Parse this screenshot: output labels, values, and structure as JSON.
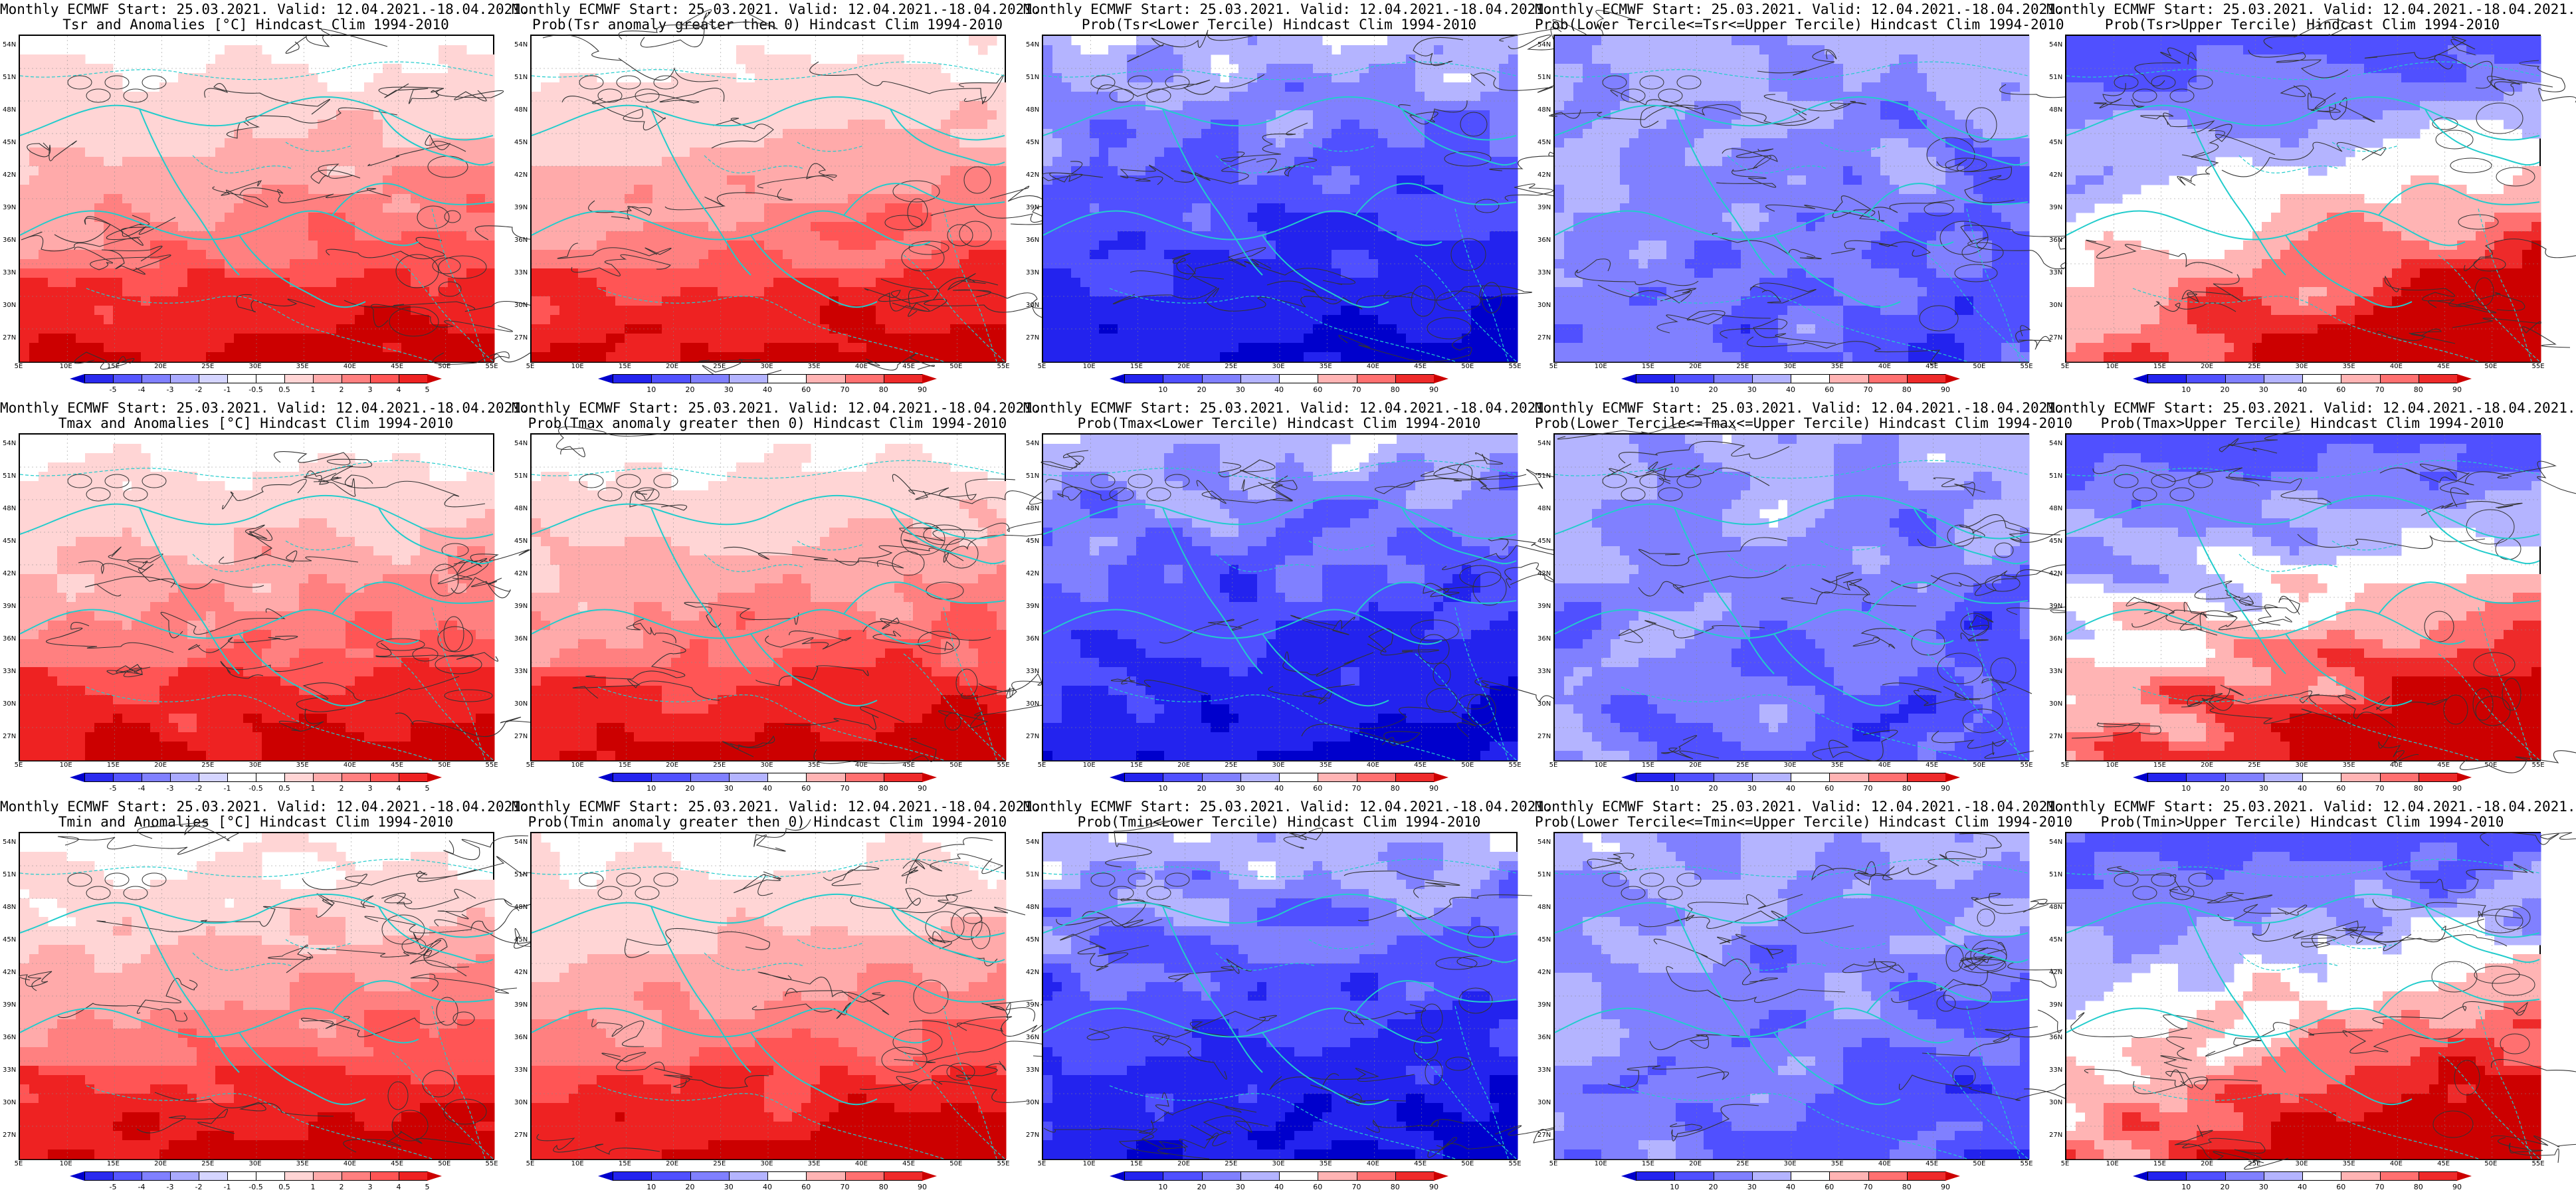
{
  "colors": {
    "anomaly_scale": [
      "#0000cc",
      "#2a2aee",
      "#5555ff",
      "#8080ff",
      "#aaaaff",
      "#d5d5ff",
      "#ffffff",
      "#ffffff",
      "#ffd5d5",
      "#ffaaaa",
      "#ff8080",
      "#ff5555",
      "#ee2222",
      "#cc0000"
    ],
    "prob_scale": [
      "#0000cc",
      "#2323ee",
      "#5050ff",
      "#8080ff",
      "#b4b4ff",
      "#ffffff",
      "#ffb4b4",
      "#ff7070",
      "#ee2a2a",
      "#cc0000"
    ],
    "coast": "#22cccc",
    "contour": "#333333"
  },
  "rows": [
    {
      "variable": "Tsr",
      "panels": [
        {
          "type": "anomaly",
          "title1": "Monthly ECMWF Start: 25.03.2021. Valid: 12.04.2021.-18.04.2021.",
          "title2": "Tsr and Anomalies [°C] Hindcast Clim 1994-2010",
          "tone": "warm"
        },
        {
          "type": "prob",
          "title1": "Monthly ECMWF Start: 25.03.2021. Valid: 12.04.2021.-18.04.2021.",
          "title2": "Prob(Tsr anomaly greater then 0) Hindcast Clim 1994-2010",
          "tone": "warm"
        },
        {
          "type": "prob",
          "title1": "Monthly ECMWF Start: 25.03.2021. Valid: 12.04.2021.-18.04.2021.",
          "title2": "Prob(Tsr<Lower Tercile) Hindcast Clim 1994-2010",
          "tone": "coldstrong"
        },
        {
          "type": "prob",
          "title1": "Monthly ECMWF Start: 25.03.2021. Valid: 12.04.2021.-18.04.2021.",
          "title2": "Prob(Lower Tercile<=Tsr<=Upper Tercile) Hindcast Clim 1994-2010",
          "tone": "coldmid"
        },
        {
          "type": "prob",
          "title1": "Monthly ECMWF Start: 25.03.2021. Valid: 12.04.2021.-18.04.2021.",
          "title2": "Prob(Tsr>Upper Tercile) Hindcast Clim 1994-2010",
          "tone": "mixed"
        }
      ]
    },
    {
      "variable": "Tmax",
      "panels": [
        {
          "type": "anomaly",
          "title1": "Monthly ECMWF Start: 25.03.2021. Valid: 12.04.2021.-18.04.2021.",
          "title2": "Tmax and Anomalies [°C] Hindcast Clim 1994-2010",
          "tone": "warm"
        },
        {
          "type": "prob",
          "title1": "Monthly ECMWF Start: 25.03.2021. Valid: 12.04.2021.-18.04.2021.",
          "title2": "Prob(Tmax anomaly greater then 0) Hindcast Clim 1994-2010",
          "tone": "warm"
        },
        {
          "type": "prob",
          "title1": "Monthly ECMWF Start: 25.03.2021. Valid: 12.04.2021.-18.04.2021.",
          "title2": "Prob(Tmax<Lower Tercile) Hindcast Clim 1994-2010",
          "tone": "coldstrong"
        },
        {
          "type": "prob",
          "title1": "Monthly ECMWF Start: 25.03.2021. Valid: 12.04.2021.-18.04.2021.",
          "title2": "Prob(Lower Tercile<=Tmax<=Upper Tercile) Hindcast Clim 1994-2010",
          "tone": "coldmid"
        },
        {
          "type": "prob",
          "title1": "Monthly ECMWF Start: 25.03.2021. Valid: 12.04.2021.-18.04.2021.",
          "title2": "Prob(Tmax>Upper Tercile) Hindcast Clim 1994-2010",
          "tone": "mixed"
        }
      ]
    },
    {
      "variable": "Tmin",
      "panels": [
        {
          "type": "anomaly",
          "title1": "Monthly ECMWF Start: 25.03.2021. Valid: 12.04.2021.-18.04.2021.",
          "title2": "Tmin and Anomalies [°C] Hindcast Clim 1994-2010",
          "tone": "warm"
        },
        {
          "type": "prob",
          "title1": "Monthly ECMWF Start: 25.03.2021. Valid: 12.04.2021.-18.04.2021.",
          "title2": "Prob(Tmin anomaly greater then 0) Hindcast Clim 1994-2010",
          "tone": "warm"
        },
        {
          "type": "prob",
          "title1": "Monthly ECMWF Start: 25.03.2021. Valid: 12.04.2021.-18.04.2021.",
          "title2": "Prob(Tmin<Lower Tercile) Hindcast Clim 1994-2010",
          "tone": "coldstrong"
        },
        {
          "type": "prob",
          "title1": "Monthly ECMWF Start: 25.03.2021. Valid: 12.04.2021.-18.04.2021.",
          "title2": "Prob(Lower Tercile<=Tmin<=Upper Tercile) Hindcast Clim 1994-2010",
          "tone": "coldmid"
        },
        {
          "type": "prob",
          "title1": "Monthly ECMWF Start: 25.03.2021. Valid: 12.04.2021.-18.04.2021.",
          "title2": "Prob(Tmin>Upper Tercile) Hindcast Clim 1994-2010",
          "tone": "mixed"
        }
      ]
    }
  ],
  "lat_labels": [
    "54N",
    "51N",
    "48N",
    "45N",
    "42N",
    "39N",
    "36N",
    "33N",
    "30N",
    "27N"
  ],
  "lon_labels": [
    "5E",
    "10E",
    "15E",
    "20E",
    "25E",
    "30E",
    "35E",
    "40E",
    "45E",
    "50E",
    "55E"
  ],
  "anomaly_ticks": [
    "-5",
    "-4",
    "-3",
    "-2",
    "-1",
    "-0.5",
    "0.5",
    "1",
    "2",
    "3",
    "4",
    "5"
  ],
  "prob_ticks": [
    "10",
    "20",
    "30",
    "40",
    "60",
    "70",
    "80",
    "90"
  ]
}
